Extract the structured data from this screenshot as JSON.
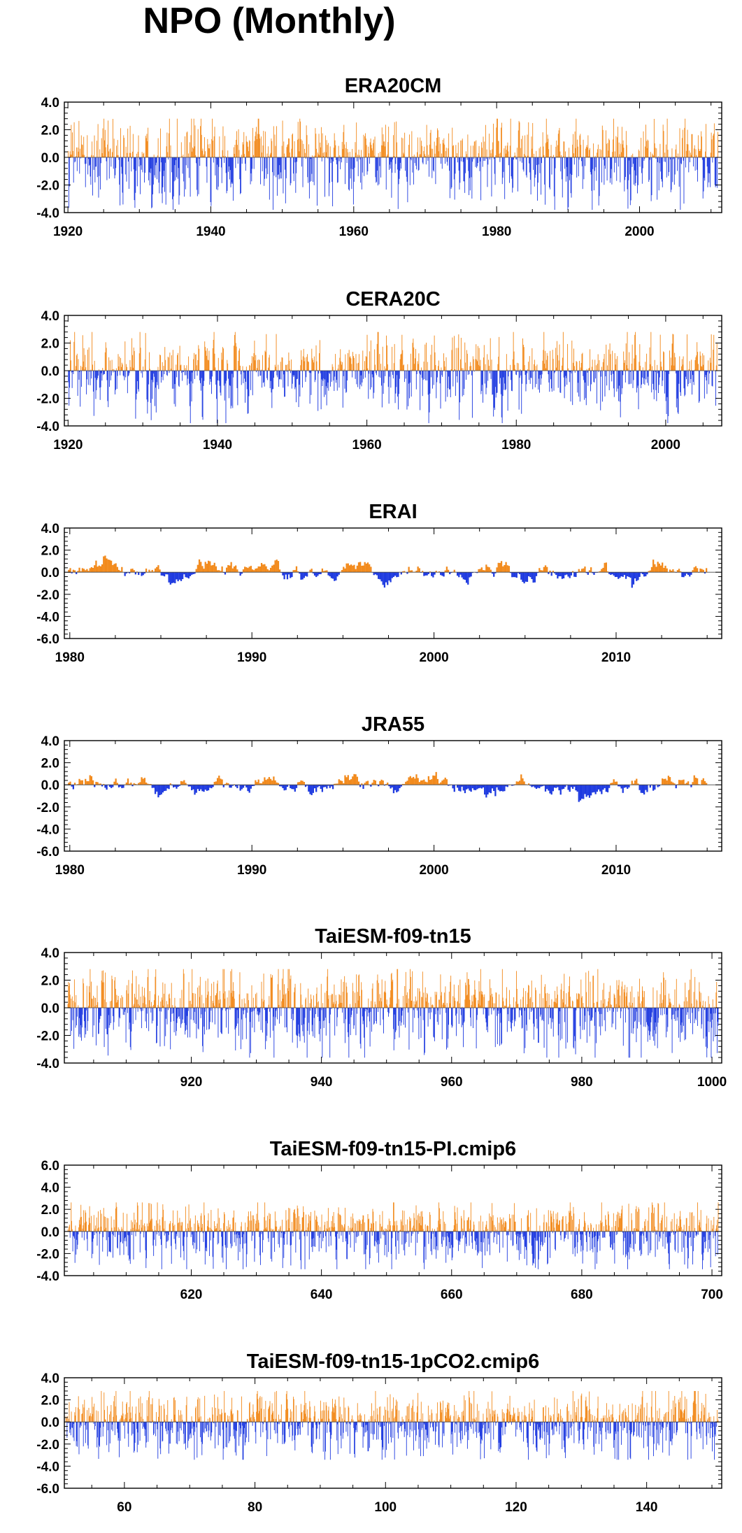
{
  "figure": {
    "title": "NPO (Monthly)"
  },
  "colors": {
    "positive": "#f28a1c",
    "negative": "#1f3be0",
    "axis": "#000000"
  },
  "chart_data": [
    {
      "type": "bar",
      "title": "ERA20CM",
      "xlim": [
        1919.5,
        2011.5
      ],
      "ylim": [
        -4.0,
        4.0
      ],
      "xticks": [
        1920,
        1940,
        1960,
        1980,
        2000
      ],
      "xtick_labels": [
        "1920",
        "1940",
        "1960",
        "1980",
        "2000"
      ],
      "yticks": [
        -4.0,
        -2.0,
        0.0,
        2.0,
        4.0
      ],
      "ytick_labels": [
        "-4.0",
        "-2.0",
        "0.0",
        "2.0",
        "4.0"
      ],
      "series_x_range": [
        1920.0,
        2011.0
      ],
      "pos_amplitude": 1.6,
      "neg_amplitude": 2.0,
      "persistence": 0.2
    },
    {
      "type": "bar",
      "title": "CERA20C",
      "xlim": [
        1919.5,
        2007.5
      ],
      "ylim": [
        -4.0,
        4.0
      ],
      "xticks": [
        1920,
        1940,
        1960,
        1980,
        2000
      ],
      "xtick_labels": [
        "1920",
        "1940",
        "1960",
        "1980",
        "2000"
      ],
      "yticks": [
        -4.0,
        -2.0,
        0.0,
        2.0,
        4.0
      ],
      "ytick_labels": [
        "-4.0",
        "-2.0",
        "0.0",
        "2.0",
        "4.0"
      ],
      "series_x_range": [
        1920.0,
        2006.9
      ],
      "pos_amplitude": 1.6,
      "neg_amplitude": 2.0,
      "persistence": 0.3
    },
    {
      "type": "bar",
      "title": "ERAI",
      "xlim": [
        1979.7,
        2015.8
      ],
      "ylim": [
        -6.0,
        4.0
      ],
      "xticks": [
        1980,
        1990,
        2000,
        2010
      ],
      "xtick_labels": [
        "1980",
        "1990",
        "2000",
        "2010"
      ],
      "yticks": [
        -6.0,
        -4.0,
        -2.0,
        0.0,
        2.0,
        4.0
      ],
      "ytick_labels": [
        "-6.0",
        "-4.0",
        "-2.0",
        "0.0",
        "2.0",
        "4.0"
      ],
      "series_x_range": [
        1979.9,
        2015.0
      ],
      "pos_amplitude": 1.5,
      "neg_amplitude": 1.4,
      "persistence": 0.82
    },
    {
      "type": "bar",
      "title": "JRA55",
      "xlim": [
        1979.7,
        2015.8
      ],
      "ylim": [
        -6.0,
        4.0
      ],
      "xticks": [
        1980,
        1990,
        2000,
        2010
      ],
      "xtick_labels": [
        "1980",
        "1990",
        "2000",
        "2010"
      ],
      "yticks": [
        -6.0,
        -4.0,
        -2.0,
        0.0,
        2.0,
        4.0
      ],
      "ytick_labels": [
        "-6.0",
        "-4.0",
        "-2.0",
        "0.0",
        "2.0",
        "4.0"
      ],
      "series_x_range": [
        1979.9,
        2015.0
      ],
      "pos_amplitude": 1.5,
      "neg_amplitude": 1.4,
      "persistence": 0.82
    },
    {
      "type": "bar",
      "title": "TaiESM-f09-tn15",
      "xlim": [
        900.5,
        1001.5
      ],
      "ylim": [
        -4.0,
        4.0
      ],
      "xticks": [
        920,
        940,
        960,
        980,
        1000
      ],
      "xtick_labels": [
        "920",
        "940",
        "960",
        "980",
        "1000"
      ],
      "yticks": [
        -4.0,
        -2.0,
        0.0,
        2.0,
        4.0
      ],
      "ytick_labels": [
        "-4.0",
        "-2.0",
        "0.0",
        "2.0",
        "4.0"
      ],
      "series_x_range": [
        901.0,
        1001.0
      ],
      "pos_amplitude": 1.6,
      "neg_amplitude": 1.9,
      "persistence": 0.2
    },
    {
      "type": "bar",
      "title": "TaiESM-f09-tn15-PI.cmip6",
      "xlim": [
        600.5,
        701.5
      ],
      "ylim": [
        -4.0,
        6.0
      ],
      "xticks": [
        620,
        640,
        660,
        680,
        700
      ],
      "xtick_labels": [
        "620",
        "640",
        "660",
        "680",
        "700"
      ],
      "yticks": [
        -4.0,
        -2.0,
        0.0,
        2.0,
        4.0,
        6.0
      ],
      "ytick_labels": [
        "-4.0",
        "-2.0",
        "0.0",
        "2.0",
        "4.0",
        "6.0"
      ],
      "series_x_range": [
        601.0,
        701.0
      ],
      "pos_amplitude": 1.5,
      "neg_amplitude": 1.8,
      "persistence": 0.2
    },
    {
      "type": "bar",
      "title": "TaiESM-f09-tn15-1pCO2.cmip6",
      "xlim": [
        50.8,
        151.5
      ],
      "ylim": [
        -6.0,
        4.0
      ],
      "xticks": [
        60,
        80,
        100,
        120,
        140
      ],
      "xtick_labels": [
        "60",
        "80",
        "100",
        "120",
        "140"
      ],
      "yticks": [
        -6.0,
        -4.0,
        -2.0,
        0.0,
        2.0,
        4.0
      ],
      "ytick_labels": [
        "-6.0",
        "-4.0",
        "-2.0",
        "0.0",
        "2.0",
        "4.0"
      ],
      "series_x_range": [
        51.0,
        151.0
      ],
      "pos_amplitude": 1.6,
      "neg_amplitude": 1.8,
      "persistence": 0.2
    }
  ]
}
